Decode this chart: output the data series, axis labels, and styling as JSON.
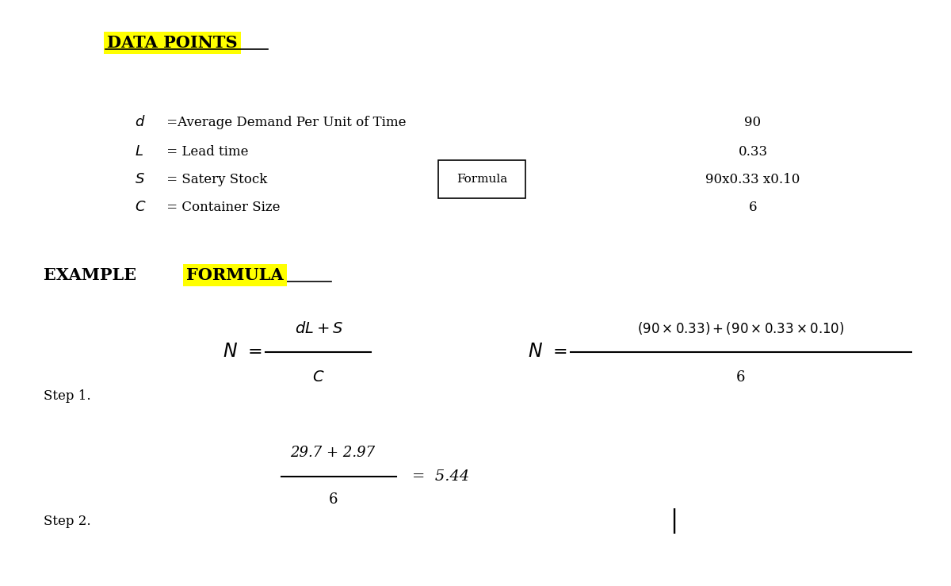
{
  "bg_color": "#ffffff",
  "title_data_points": "DATA POINTS",
  "highlight_color": "#ffff00",
  "val_90": "90",
  "val_033": "0.33",
  "val_safety": "90x0.33 x0.10",
  "val_6": "6",
  "formula_box_text": "Formula",
  "step1": "Step 1.",
  "step2": "Step 2.",
  "frac_num_step2": "29.7 + 2.97",
  "frac_den_step2": "6",
  "result_step2": "=  5.44",
  "vertical_bar": "|"
}
